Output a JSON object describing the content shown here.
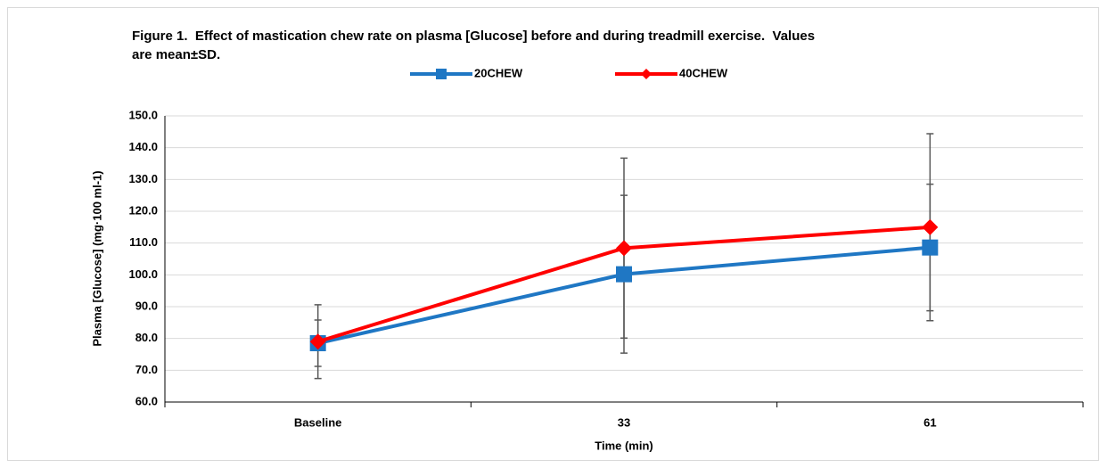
{
  "chart_data": {
    "type": "line",
    "title": "Figure 1.  Effect of mastication chew rate on plasma [Glucose] before and during treadmill exercise.  Values are mean±SD.",
    "x_label": "Time (min)",
    "y_label": "Plasma [Glucose] (mg·100 ml-1)",
    "categories": [
      "Baseline",
      "33",
      "61"
    ],
    "series": [
      {
        "name": "20CHEW",
        "color": "#1f77c4",
        "marker": "square",
        "values": [
          78.5,
          100.2,
          108.6
        ],
        "errors": [
          7.3,
          24.8,
          19.9
        ]
      },
      {
        "name": "40CHEW",
        "color": "#ff0000",
        "marker": "diamond",
        "values": [
          79.0,
          108.4,
          115.0
        ],
        "errors": [
          11.6,
          28.3,
          29.4
        ]
      }
    ],
    "ylim": [
      60,
      150
    ],
    "yticks": [
      {
        "value": 60,
        "label": "60.0"
      },
      {
        "value": 70,
        "label": "70.0"
      },
      {
        "value": 80,
        "label": "80.0"
      },
      {
        "value": 90,
        "label": "90.0"
      },
      {
        "value": 100,
        "label": "100.0"
      },
      {
        "value": 110,
        "label": "110.0"
      },
      {
        "value": 120,
        "label": "120.0"
      },
      {
        "value": 130,
        "label": "130.0"
      },
      {
        "value": 140,
        "label": "140.0"
      },
      {
        "value": 150,
        "label": "150.0"
      }
    ],
    "grid": true,
    "legend": "top"
  }
}
